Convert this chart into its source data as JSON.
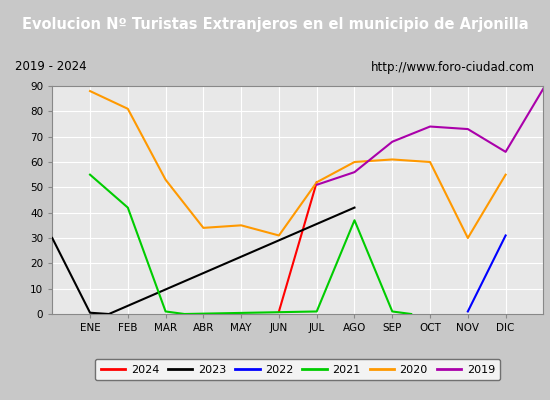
{
  "title": "Evolucion Nº Turistas Extranjeros en el municipio de Arjonilla",
  "subtitle_left": "2019 - 2024",
  "subtitle_right": "http://www.foro-ciudad.com",
  "months": [
    "ENE",
    "FEB",
    "MAR",
    "ABR",
    "MAY",
    "JUN",
    "JUL",
    "AGO",
    "SEP",
    "OCT",
    "NOV",
    "DIC"
  ],
  "ylim": [
    0,
    90
  ],
  "yticks": [
    0,
    10,
    20,
    30,
    40,
    50,
    60,
    70,
    80,
    90
  ],
  "title_bg": "#4ea6d8",
  "title_color": "#ffffff",
  "subtitle_bg": "#f0f0f0",
  "subtitle_color": "#000000",
  "plot_bg": "#e8e8e8",
  "fig_bg": "#c8c8c8",
  "grid_color": "#ffffff",
  "series": {
    "2024": {
      "color": "#ff0000",
      "x": [
        6.0,
        7.0
      ],
      "y": [
        1.0,
        52.0
      ]
    },
    "2023": {
      "color": "#000000",
      "x": [
        0.0,
        1.0,
        1.5,
        8.0
      ],
      "y": [
        30.0,
        0.5,
        0.0,
        42.0
      ]
    },
    "2022": {
      "color": "#0000ff",
      "x": [
        11.0,
        12.0
      ],
      "y": [
        1.0,
        31.0
      ]
    },
    "2021": {
      "color": "#00cc00",
      "x": [
        1.0,
        2.0,
        3.0,
        3.5,
        7.0,
        8.0,
        9.0,
        9.5
      ],
      "y": [
        55.0,
        42.0,
        1.0,
        0.0,
        1.0,
        37.0,
        1.0,
        0.0
      ]
    },
    "2020": {
      "color": "#ff9900",
      "x": [
        1,
        2,
        3,
        4,
        5,
        6,
        7,
        8,
        9,
        10,
        11,
        12
      ],
      "y": [
        88,
        81,
        53,
        34,
        35,
        31,
        52,
        60,
        61,
        60,
        30,
        55
      ]
    },
    "2019": {
      "color": "#aa00aa",
      "x": [
        7,
        8,
        9,
        10,
        11,
        12,
        13
      ],
      "y": [
        51,
        56,
        68,
        74,
        73,
        64,
        89
      ]
    }
  },
  "legend": [
    {
      "label": "2024",
      "color": "#ff0000"
    },
    {
      "label": "2023",
      "color": "#000000"
    },
    {
      "label": "2022",
      "color": "#0000ff"
    },
    {
      "label": "2021",
      "color": "#00cc00"
    },
    {
      "label": "2020",
      "color": "#ff9900"
    },
    {
      "label": "2019",
      "color": "#aa00aa"
    }
  ]
}
